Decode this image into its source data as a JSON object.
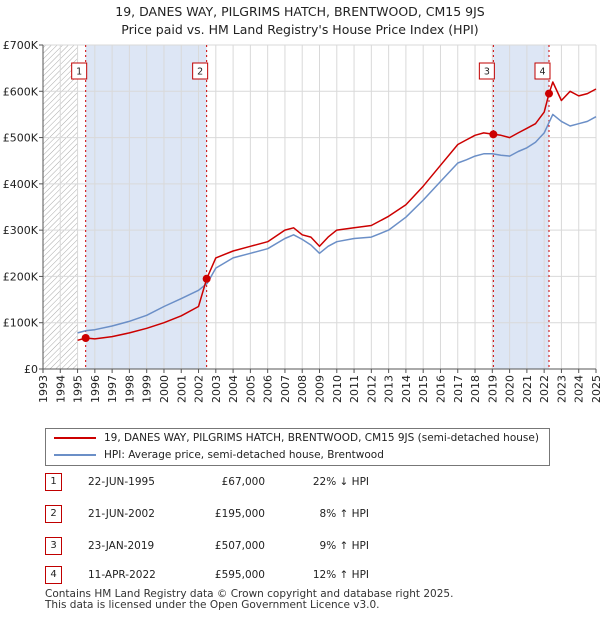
{
  "title_line1": "19, DANES WAY, PILGRIMS HATCH, BRENTWOOD, CM15 9JS",
  "title_line2": "Price paid vs. HM Land Registry's House Price Index (HPI)",
  "colors": {
    "property": "#cc0000",
    "hpi": "#6b8fc7",
    "shade": "#dde6f5",
    "hatch": "#aaaaaa"
  },
  "chart_data": {
    "type": "line",
    "title": "19, DANES WAY, PILGRIMS HATCH, BRENTWOOD, CM15 9JS — Price paid vs. HM Land Registry's House Price Index (HPI)",
    "xlabel": "",
    "ylabel": "",
    "xlim": [
      1993,
      2025
    ],
    "ylim": [
      0,
      700000
    ],
    "y_ticks": [
      0,
      100000,
      200000,
      300000,
      400000,
      500000,
      600000,
      700000
    ],
    "y_tick_labels": [
      "£0",
      "£100K",
      "£200K",
      "£300K",
      "£400K",
      "£500K",
      "£600K",
      "£700K"
    ],
    "x_ticks": [
      1993,
      1994,
      1995,
      1996,
      1997,
      1998,
      1999,
      2000,
      2001,
      2002,
      2003,
      2004,
      2005,
      2006,
      2007,
      2008,
      2009,
      2010,
      2011,
      2012,
      2013,
      2014,
      2015,
      2016,
      2017,
      2018,
      2019,
      2020,
      2021,
      2022,
      2023,
      2024,
      2025
    ],
    "x_tick_labels": [
      "1993",
      "1994",
      "1995",
      "1996",
      "1997",
      "1998",
      "1999",
      "2000",
      "2001",
      "2002",
      "2003",
      "2004",
      "2005",
      "2006",
      "2007",
      "2008",
      "2009",
      "2010",
      "2011",
      "2012",
      "2013",
      "2014",
      "2015",
      "2016",
      "2017",
      "2018",
      "2019",
      "2020",
      "2021",
      "2022",
      "2023",
      "2024",
      "2025"
    ],
    "hatched_region": [
      1993,
      1995.0
    ],
    "shaded_regions": [
      [
        1995.47,
        2002.47
      ],
      [
        2019.06,
        2022.28
      ]
    ],
    "series": [
      {
        "name": "19, DANES WAY, PILGRIMS HATCH, BRENTWOOD, CM15 9JS (semi-detached house)",
        "color": "#cc0000",
        "x": [
          1995.0,
          1995.47,
          1996.0,
          1997.0,
          1998.0,
          1999.0,
          2000.0,
          2001.0,
          2002.0,
          2002.47,
          2003.0,
          2004.0,
          2005.0,
          2006.0,
          2007.0,
          2007.5,
          2008.0,
          2008.5,
          2009.0,
          2009.5,
          2010.0,
          2011.0,
          2012.0,
          2013.0,
          2014.0,
          2015.0,
          2016.0,
          2017.0,
          2017.5,
          2018.0,
          2018.5,
          2019.06,
          2019.5,
          2020.0,
          2020.5,
          2021.0,
          2021.5,
          2022.0,
          2022.28,
          2022.5,
          2023.0,
          2023.5,
          2024.0,
          2024.5,
          2025.0
        ],
        "y": [
          62000,
          67000,
          65000,
          70000,
          78000,
          88000,
          100000,
          115000,
          135000,
          195000,
          240000,
          255000,
          265000,
          275000,
          300000,
          305000,
          290000,
          285000,
          265000,
          285000,
          300000,
          305000,
          310000,
          330000,
          355000,
          395000,
          440000,
          485000,
          495000,
          505000,
          510000,
          507000,
          505000,
          500000,
          510000,
          520000,
          530000,
          555000,
          595000,
          620000,
          580000,
          600000,
          590000,
          595000,
          605000
        ]
      },
      {
        "name": "HPI: Average price, semi-detached house, Brentwood",
        "color": "#6b8fc7",
        "x": [
          1995.0,
          1995.5,
          1996.0,
          1997.0,
          1998.0,
          1999.0,
          2000.0,
          2001.0,
          2002.0,
          2002.5,
          2003.0,
          2004.0,
          2005.0,
          2006.0,
          2007.0,
          2007.5,
          2008.0,
          2008.5,
          2009.0,
          2009.5,
          2010.0,
          2011.0,
          2012.0,
          2013.0,
          2014.0,
          2015.0,
          2016.0,
          2017.0,
          2017.5,
          2018.0,
          2018.5,
          2019.0,
          2019.5,
          2020.0,
          2020.5,
          2021.0,
          2021.5,
          2022.0,
          2022.5,
          2023.0,
          2023.5,
          2024.0,
          2024.5,
          2025.0
        ],
        "y": [
          78000,
          83000,
          85000,
          93000,
          103000,
          116000,
          135000,
          152000,
          170000,
          185000,
          218000,
          240000,
          250000,
          260000,
          282000,
          290000,
          280000,
          268000,
          250000,
          265000,
          275000,
          282000,
          285000,
          300000,
          328000,
          365000,
          405000,
          445000,
          452000,
          460000,
          465000,
          465000,
          462000,
          460000,
          470000,
          478000,
          490000,
          510000,
          550000,
          535000,
          525000,
          530000,
          535000,
          545000
        ]
      }
    ],
    "markers": [
      {
        "label": "1",
        "x": 1995.47,
        "y": 67000
      },
      {
        "label": "2",
        "x": 2002.47,
        "y": 195000
      },
      {
        "label": "3",
        "x": 2019.06,
        "y": 507000
      },
      {
        "label": "4",
        "x": 2022.28,
        "y": 595000
      }
    ],
    "legend": [
      "19, DANES WAY, PILGRIMS HATCH, BRENTWOOD, CM15 9JS (semi-detached house)",
      "HPI: Average price, semi-detached house, Brentwood"
    ]
  },
  "sales": [
    {
      "num": "1",
      "date": "22-JUN-1995",
      "price": "£67,000",
      "hpi": "22% ↓ HPI"
    },
    {
      "num": "2",
      "date": "21-JUN-2002",
      "price": "£195,000",
      "hpi": "8% ↑ HPI"
    },
    {
      "num": "3",
      "date": "23-JAN-2019",
      "price": "£507,000",
      "hpi": "9% ↑ HPI"
    },
    {
      "num": "4",
      "date": "11-APR-2022",
      "price": "£595,000",
      "hpi": "12% ↑ HPI"
    }
  ],
  "footer_line1": "Contains HM Land Registry data © Crown copyright and database right 2025.",
  "footer_line2": "This data is licensed under the Open Government Licence v3.0."
}
